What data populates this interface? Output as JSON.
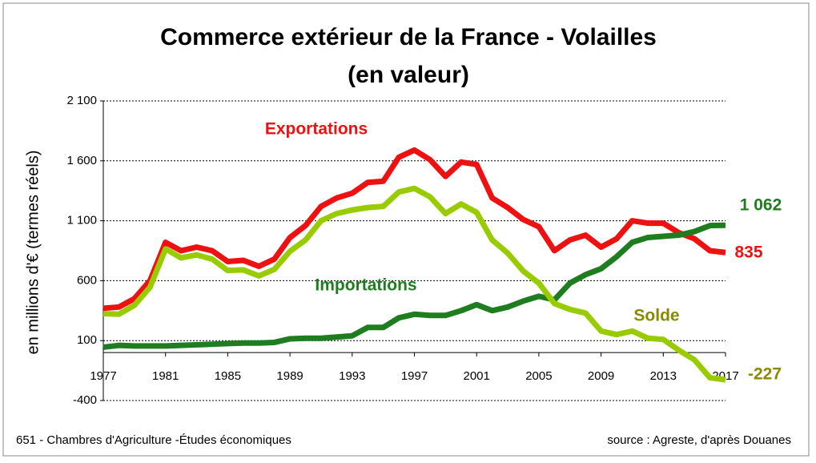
{
  "chart_data": {
    "type": "line",
    "title": "Commerce extérieur de la France - Volailles",
    "subtitle": "(en valeur)",
    "ylabel": "en millions d'€ (termes réels)",
    "footer_left": "651 - Chambres d'Agriculture -Études économiques",
    "footer_right": "source : Agreste, d'après Douanes",
    "x": [
      1977,
      1978,
      1979,
      1980,
      1981,
      1982,
      1983,
      1984,
      1985,
      1986,
      1987,
      1988,
      1989,
      1990,
      1991,
      1992,
      1993,
      1994,
      1995,
      1996,
      1997,
      1998,
      1999,
      2000,
      2001,
      2002,
      2003,
      2004,
      2005,
      2006,
      2007,
      2008,
      2009,
      2010,
      2011,
      2012,
      2013,
      2014,
      2015,
      2016,
      2017
    ],
    "xlim": [
      1977,
      2017
    ],
    "xticks": [
      1977,
      1981,
      1985,
      1989,
      1993,
      1997,
      2001,
      2005,
      2009,
      2013,
      2017
    ],
    "ylim": [
      -400,
      2100
    ],
    "yticks": [
      {
        "value": 2100,
        "label": "2 100"
      },
      {
        "value": 1600,
        "label": "1 600"
      },
      {
        "value": 1100,
        "label": "1 100"
      },
      600,
      100,
      -400
    ],
    "grid": true,
    "series": [
      {
        "name": "Exportations",
        "color": "#ee1111",
        "label_color": "#ee1111",
        "end_label": "835",
        "values": [
          370,
          380,
          450,
          600,
          920,
          850,
          880,
          850,
          760,
          770,
          720,
          780,
          960,
          1060,
          1220,
          1290,
          1330,
          1420,
          1430,
          1630,
          1690,
          1610,
          1470,
          1590,
          1570,
          1290,
          1210,
          1110,
          1050,
          850,
          940,
          980,
          880,
          950,
          1100,
          1080,
          1080,
          1000,
          950,
          850,
          835
        ]
      },
      {
        "name": "Importations",
        "color": "#1e7d1e",
        "label_color": "#1e7d1e",
        "end_label": "1 062",
        "values": [
          45,
          60,
          55,
          55,
          55,
          60,
          65,
          70,
          75,
          80,
          80,
          85,
          115,
          120,
          120,
          130,
          140,
          210,
          210,
          290,
          320,
          310,
          310,
          350,
          400,
          350,
          380,
          430,
          470,
          440,
          580,
          650,
          700,
          800,
          920,
          960,
          970,
          980,
          1010,
          1060,
          1062
        ]
      },
      {
        "name": "Solde",
        "color": "#99cc00",
        "label_color": "#8a8a00",
        "end_label": "-227",
        "values": [
          325,
          320,
          395,
          545,
          865,
          790,
          815,
          780,
          685,
          690,
          640,
          695,
          845,
          940,
          1100,
          1160,
          1190,
          1210,
          1220,
          1340,
          1370,
          1300,
          1160,
          1240,
          1170,
          940,
          830,
          680,
          580,
          410,
          360,
          330,
          180,
          150,
          180,
          120,
          110,
          20,
          -60,
          -210,
          -227
        ]
      }
    ]
  }
}
